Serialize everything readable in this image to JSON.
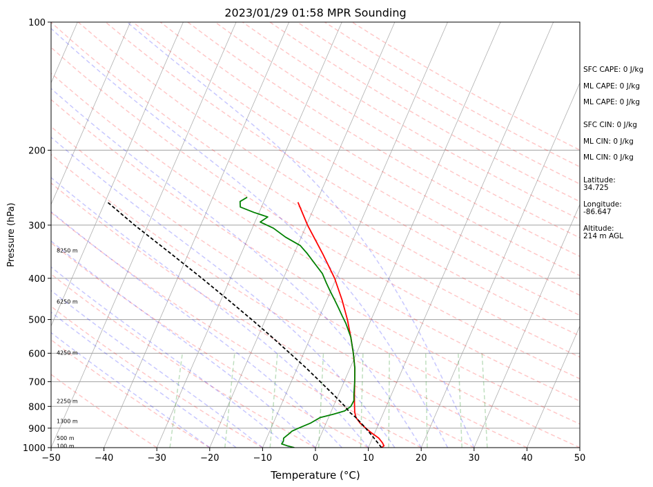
{
  "chart_data": {
    "type": "line",
    "title": "2023/01/29 01:58 MPR Sounding",
    "xlabel": "Temperature (°C)",
    "ylabel": "Pressure (hPa)",
    "xlim": [
      -50,
      50
    ],
    "ylim": [
      1000,
      100
    ],
    "y_scale": "log",
    "grid": true,
    "x_ticks": [
      "−50",
      "−40",
      "−30",
      "−20",
      "−10",
      "0",
      "10",
      "20",
      "30",
      "40",
      "50"
    ],
    "y_ticks": [
      "100",
      "200",
      "300",
      "400",
      "500",
      "600",
      "700",
      "800",
      "900",
      "1000"
    ],
    "series": [
      {
        "color": "#ff0000",
        "style": "solid",
        "points": [
          {
            "p": 1000,
            "t": 12.5
          },
          {
            "p": 990,
            "t": 12.8
          },
          {
            "p": 975,
            "t": 12.3
          },
          {
            "p": 950,
            "t": 11.2
          },
          {
            "p": 925,
            "t": 9.5
          },
          {
            "p": 900,
            "t": 7.9
          },
          {
            "p": 875,
            "t": 6.4
          },
          {
            "p": 850,
            "t": 5.2
          },
          {
            "p": 825,
            "t": 4.5
          },
          {
            "p": 800,
            "t": 4.0
          },
          {
            "p": 775,
            "t": 3.5
          },
          {
            "p": 750,
            "t": 3.0
          },
          {
            "p": 700,
            "t": 2.0
          },
          {
            "p": 650,
            "t": 0.9
          },
          {
            "p": 600,
            "t": -0.6
          },
          {
            "p": 550,
            "t": -2.4
          },
          {
            "p": 500,
            "t": -4.5
          },
          {
            "p": 450,
            "t": -7.1
          },
          {
            "p": 400,
            "t": -10.3
          },
          {
            "p": 350,
            "t": -14.6
          },
          {
            "p": 300,
            "t": -19.8
          },
          {
            "p": 265,
            "t": -23.5
          }
        ]
      },
      {
        "color": "#008000",
        "style": "solid",
        "points": [
          {
            "p": 1000,
            "t": -4.0
          },
          {
            "p": 990,
            "t": -5.5
          },
          {
            "p": 980,
            "t": -6.7
          },
          {
            "p": 965,
            "t": -6.6
          },
          {
            "p": 950,
            "t": -6.8
          },
          {
            "p": 940,
            "t": -6.5
          },
          {
            "p": 930,
            "t": -6.2
          },
          {
            "p": 915,
            "t": -5.8
          },
          {
            "p": 900,
            "t": -4.8
          },
          {
            "p": 875,
            "t": -2.9
          },
          {
            "p": 850,
            "t": -1.6
          },
          {
            "p": 835,
            "t": 0.6
          },
          {
            "p": 820,
            "t": 2.5
          },
          {
            "p": 800,
            "t": 3.3
          },
          {
            "p": 775,
            "t": 3.4
          },
          {
            "p": 750,
            "t": 2.9
          },
          {
            "p": 700,
            "t": 2.0
          },
          {
            "p": 650,
            "t": 0.9
          },
          {
            "p": 600,
            "t": -0.6
          },
          {
            "p": 550,
            "t": -2.4
          },
          {
            "p": 510,
            "t": -4.5
          },
          {
            "p": 490,
            "t": -5.8
          },
          {
            "p": 470,
            "t": -7.1
          },
          {
            "p": 450,
            "t": -8.5
          },
          {
            "p": 430,
            "t": -10.0
          },
          {
            "p": 410,
            "t": -11.5
          },
          {
            "p": 390,
            "t": -13.0
          },
          {
            "p": 370,
            "t": -15.2
          },
          {
            "p": 350,
            "t": -17.5
          },
          {
            "p": 335,
            "t": -19.5
          },
          {
            "p": 320,
            "t": -23.0
          },
          {
            "p": 305,
            "t": -26.0
          },
          {
            "p": 295,
            "t": -29.0
          },
          {
            "p": 287,
            "t": -28.0
          },
          {
            "p": 280,
            "t": -31.0
          },
          {
            "p": 272,
            "t": -34.0
          },
          {
            "p": 264,
            "t": -34.5
          },
          {
            "p": 258,
            "t": -33.5
          }
        ]
      },
      {
        "color": "#000000",
        "style": "dashed",
        "points": [
          {
            "p": 1000,
            "t": 12.5
          },
          {
            "p": 950,
            "t": 10.3
          },
          {
            "p": 900,
            "t": 7.9
          },
          {
            "p": 850,
            "t": 5.2
          },
          {
            "p": 825,
            "t": 3.5
          },
          {
            "p": 800,
            "t": 2.2
          },
          {
            "p": 750,
            "t": -1.0
          },
          {
            "p": 700,
            "t": -4.5
          },
          {
            "p": 650,
            "t": -8.3
          },
          {
            "p": 600,
            "t": -12.6
          },
          {
            "p": 550,
            "t": -17.3
          },
          {
            "p": 500,
            "t": -22.6
          },
          {
            "p": 450,
            "t": -28.6
          },
          {
            "p": 400,
            "t": -35.4
          },
          {
            "p": 350,
            "t": -43.3
          },
          {
            "p": 300,
            "t": -52.5
          },
          {
            "p": 265,
            "t": -59.5
          }
        ]
      }
    ],
    "height_labels": [
      {
        "p": 995,
        "text": "100 m"
      },
      {
        "p": 952,
        "text": "500 m"
      },
      {
        "p": 870,
        "text": "1300 m"
      },
      {
        "p": 780,
        "text": "2250 m"
      },
      {
        "p": 600,
        "text": "4250 m"
      },
      {
        "p": 455,
        "text": "6250 m"
      },
      {
        "p": 345,
        "text": "8250 m"
      }
    ],
    "background_lines": {
      "isotherm_c": [
        -150,
        -140,
        -130,
        -120,
        -110,
        -100,
        -90,
        -80,
        -70,
        -60,
        -50,
        -40,
        -30,
        -20,
        -10,
        0,
        10,
        20,
        30,
        40,
        50
      ],
      "dry_adiabat_theta_c": [
        -30,
        -20,
        -10,
        0,
        10,
        20,
        30,
        40,
        50,
        60,
        70,
        80,
        90,
        100,
        110,
        120,
        130,
        140,
        150,
        160,
        170,
        180,
        190,
        200
      ],
      "moist_adiabat_start_c": [
        -20,
        -15,
        -10,
        -5,
        0,
        5,
        10,
        15,
        20,
        25,
        30
      ],
      "mixing_ratio_g_per_kg": [
        0.4,
        1,
        2,
        4,
        7,
        10,
        16,
        24,
        32
      ],
      "dry_adiabat_color": "#ff0000",
      "moist_adiabat_color": "#0000ff",
      "mixing_ratio_color": "#008000"
    }
  },
  "side_panel": {
    "sfc_cape": "SFC CAPE: 0 J/kg",
    "ml_cape_1": "ML CAPE: 0 J/kg",
    "ml_cape_2": "ML CAPE: 0 J/kg",
    "sfc_cin": "SFC CIN: 0 J/kg",
    "ml_cin_1": "ML CIN: 0 J/kg",
    "ml_cin_2": "ML CIN: 0 J/kg",
    "latitude_label": "Latitude:",
    "latitude_value": "34.725",
    "longitude_label": "Longitude:",
    "longitude_value": "-86.647",
    "altitude_label": "Altitude:",
    "altitude_value": "214 m AGL"
  }
}
